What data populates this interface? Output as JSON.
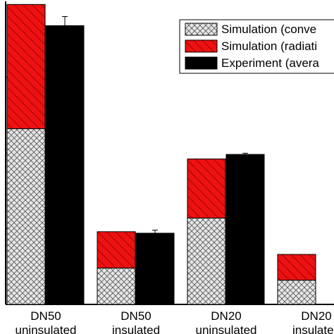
{
  "chart_data": {
    "type": "bar",
    "subtype": "stacked-simulation-with-experiment",
    "title": "",
    "xlabel": "",
    "ylabel": "",
    "ylim": [
      0,
      100
    ],
    "grid": false,
    "legend_position": "top-right",
    "categories": [
      {
        "line1": "DN50",
        "line2": "uninsulated"
      },
      {
        "line1": "DN50",
        "line2": "insulated"
      },
      {
        "line1": "DN20",
        "line2": "uninsulated"
      },
      {
        "line1": "DN20",
        "line2": "insulated"
      }
    ],
    "series": [
      {
        "name": "Simulation (convection)",
        "group": "simulation",
        "color": "#e6e6e6",
        "hatch": "crosshatch",
        "values": [
          58,
          12,
          28.5,
          8
        ]
      },
      {
        "name": "Simulation (radiation)",
        "group": "simulation",
        "color": "#ee1111",
        "hatch": "diagonal",
        "values": [
          41,
          12,
          19.5,
          8.5
        ]
      },
      {
        "name": "Experiment (average)",
        "group": "experiment",
        "color": "#000000",
        "hatch": "none",
        "values": [
          92,
          23.5,
          49.5,
          null
        ],
        "error": [
          3,
          1,
          0.4,
          null
        ]
      }
    ]
  },
  "legend": {
    "items": [
      {
        "label": "Simulation (conve",
        "icon": "crosshatch-swatch"
      },
      {
        "label": "Simulation (radiati",
        "icon": "red-hatch-swatch"
      },
      {
        "label": "Experiment (avera",
        "icon": "black-swatch"
      }
    ]
  }
}
